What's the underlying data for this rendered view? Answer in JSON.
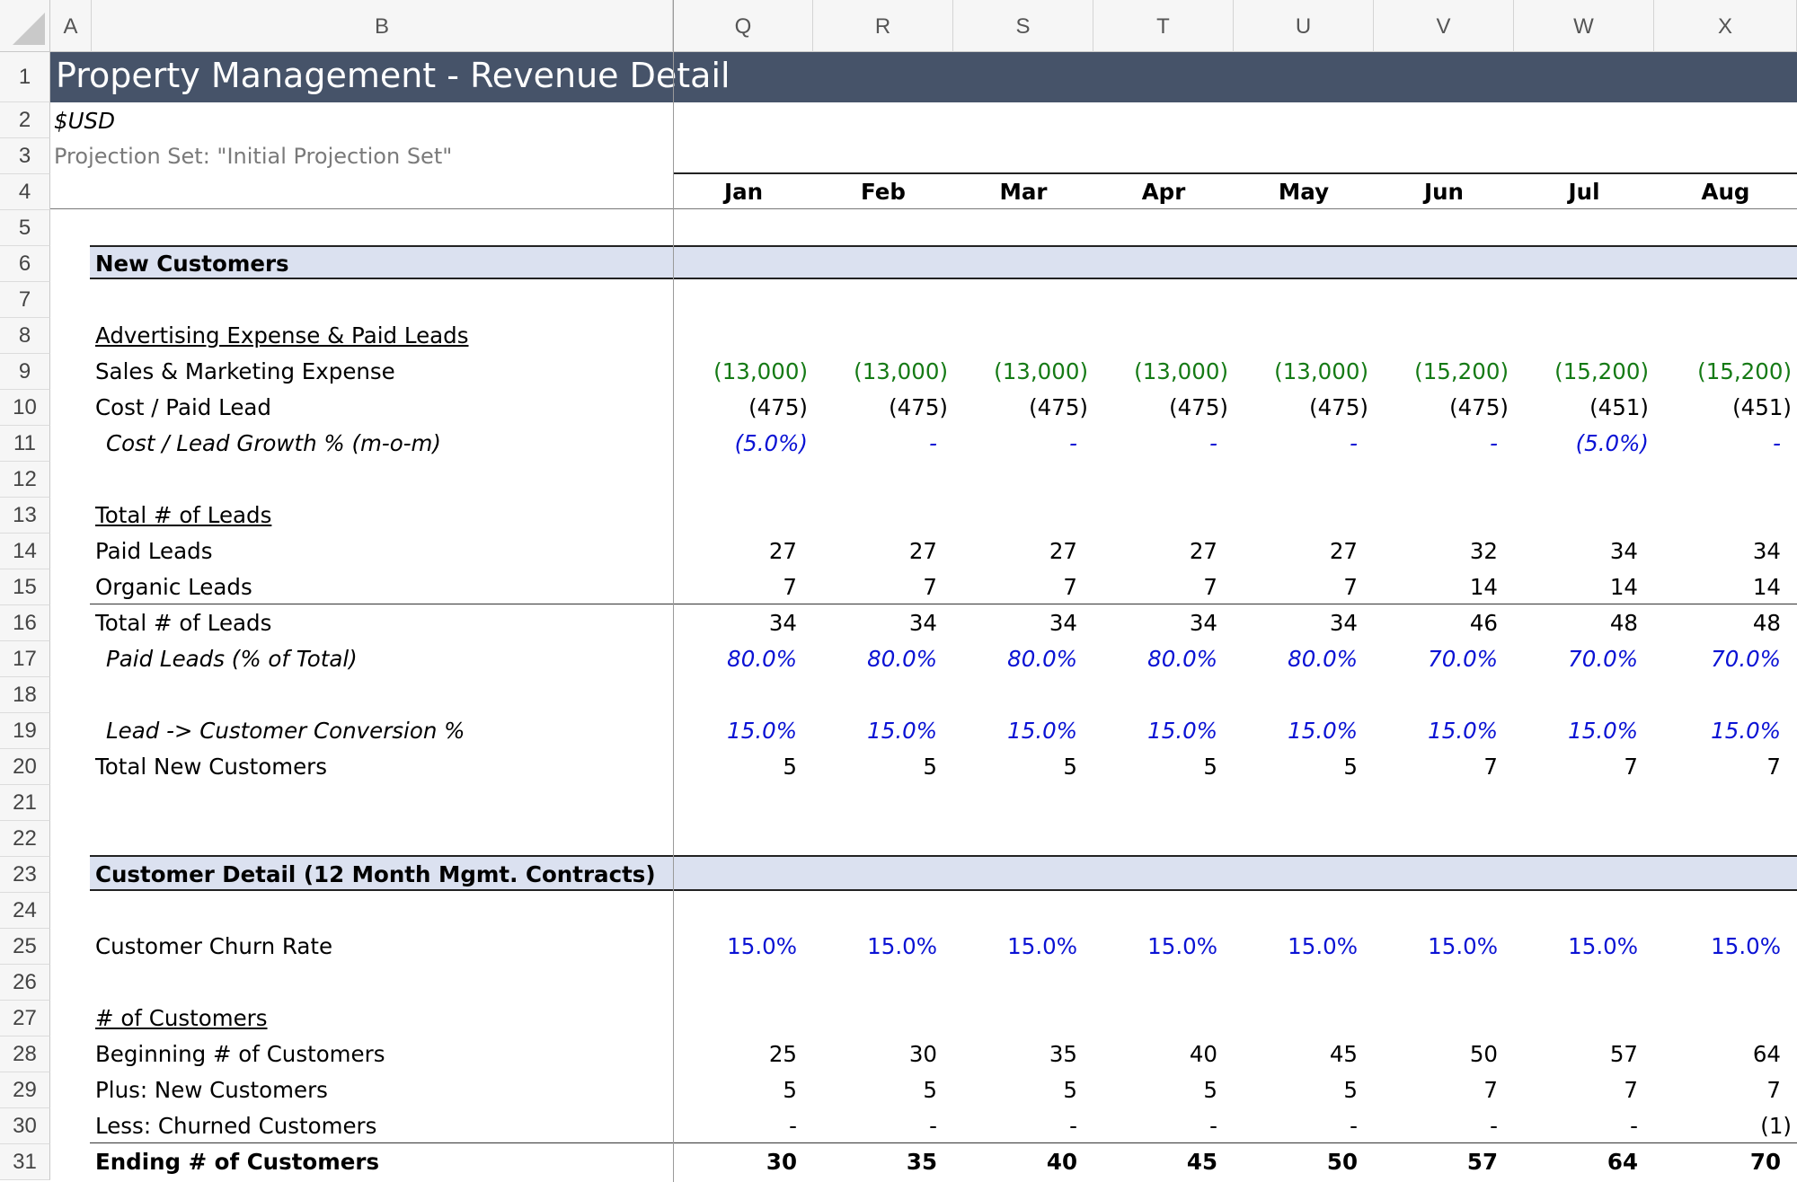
{
  "columns": {
    "letters": [
      "A",
      "B",
      "Q",
      "R",
      "S",
      "T",
      "U",
      "V",
      "W",
      "X"
    ]
  },
  "rows": [
    "1",
    "2",
    "3",
    "4",
    "5",
    "6",
    "7",
    "8",
    "9",
    "10",
    "11",
    "12",
    "13",
    "14",
    "15",
    "16",
    "17",
    "18",
    "19",
    "20",
    "21",
    "22",
    "23",
    "24",
    "25",
    "26",
    "27",
    "28",
    "29",
    "30",
    "31"
  ],
  "title": "Property Management - Revenue Detail",
  "currency": "$USD",
  "projection_set": "Projection Set: \"Initial Projection Set\"",
  "months": [
    "Jan",
    "Feb",
    "Mar",
    "Apr",
    "May",
    "Jun",
    "Jul",
    "Aug"
  ],
  "sections": {
    "new_customers": "New Customers",
    "customer_detail": "Customer Detail (12 Month Mgmt. Contracts)"
  },
  "labels": {
    "adv_header": "Advertising Expense & Paid Leads",
    "sales_marketing": "Sales & Marketing Expense",
    "cost_paid_lead": "Cost / Paid Lead",
    "cost_lead_growth": "Cost / Lead Growth % (m-o-m)",
    "total_leads_header": "Total # of Leads",
    "paid_leads": "Paid Leads",
    "organic_leads": "Organic Leads",
    "total_leads": "Total # of Leads",
    "paid_leads_pct": "Paid Leads (% of Total)",
    "conversion": "Lead -> Customer Conversion %",
    "total_new_customers": "Total New Customers",
    "churn_rate": "Customer Churn Rate",
    "num_customers_header": "# of Customers",
    "beginning_customers": "Beginning # of Customers",
    "plus_new": "Plus: New Customers",
    "less_churned": "Less: Churned Customers",
    "ending_customers": "Ending # of Customers"
  },
  "values": {
    "sales_marketing": [
      "(13,000)",
      "(13,000)",
      "(13,000)",
      "(13,000)",
      "(13,000)",
      "(15,200)",
      "(15,200)",
      "(15,200)"
    ],
    "cost_paid_lead": [
      "(475)",
      "(475)",
      "(475)",
      "(475)",
      "(475)",
      "(475)",
      "(451)",
      "(451)"
    ],
    "cost_lead_growth": [
      "(5.0%)",
      "-",
      "-",
      "-",
      "-",
      "-",
      "(5.0%)",
      "-"
    ],
    "paid_leads": [
      "27",
      "27",
      "27",
      "27",
      "27",
      "32",
      "34",
      "34"
    ],
    "organic_leads": [
      "7",
      "7",
      "7",
      "7",
      "7",
      "14",
      "14",
      "14"
    ],
    "total_leads": [
      "34",
      "34",
      "34",
      "34",
      "34",
      "46",
      "48",
      "48"
    ],
    "paid_leads_pct": [
      "80.0%",
      "80.0%",
      "80.0%",
      "80.0%",
      "80.0%",
      "70.0%",
      "70.0%",
      "70.0%"
    ],
    "conversion": [
      "15.0%",
      "15.0%",
      "15.0%",
      "15.0%",
      "15.0%",
      "15.0%",
      "15.0%",
      "15.0%"
    ],
    "total_new_customers": [
      "5",
      "5",
      "5",
      "5",
      "5",
      "7",
      "7",
      "7"
    ],
    "churn_rate": [
      "15.0%",
      "15.0%",
      "15.0%",
      "15.0%",
      "15.0%",
      "15.0%",
      "15.0%",
      "15.0%"
    ],
    "beginning_customers": [
      "25",
      "30",
      "35",
      "40",
      "45",
      "50",
      "57",
      "64"
    ],
    "plus_new": [
      "5",
      "5",
      "5",
      "5",
      "5",
      "7",
      "7",
      "7"
    ],
    "less_churned": [
      "-",
      "-",
      "-",
      "-",
      "-",
      "-",
      "-",
      "(1)"
    ],
    "ending_customers": [
      "30",
      "35",
      "40",
      "45",
      "50",
      "57",
      "64",
      "70"
    ]
  },
  "colors": {
    "title_bar": "#465369",
    "section_band": "#dbe1f0",
    "input_blue": "#0a12d4",
    "link_green": "#157a15"
  }
}
